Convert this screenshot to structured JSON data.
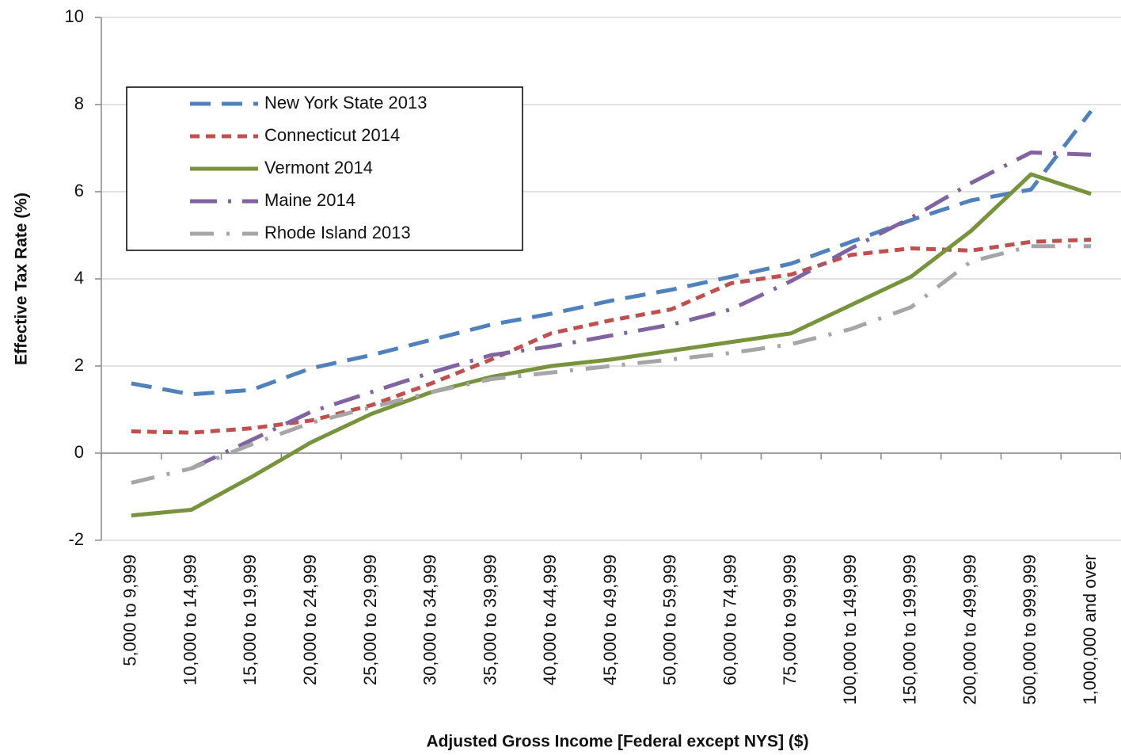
{
  "chart_data": {
    "type": "line",
    "x_label": "Adjusted Gross Income [Federal except NYS] ($)",
    "y_label": "Effective Tax Rate (%)",
    "categories": [
      "5,000 to 9,999",
      "10,000 to 14,999",
      "15,000 to 19,999",
      "20,000 to 24,999",
      "25,000 to 29,999",
      "30,000 to 34,999",
      "35,000 to 39,999",
      "40,000 to 44,999",
      "45,000 to 49,999",
      "50,000 to 59,999",
      "60,000 to 74,999",
      "75,000 to 99,999",
      "100,000 to 149,999",
      "150,000 to 199,999",
      "200,000 to 499,999",
      "500,000 to 999,999",
      "1,000,000 and over"
    ],
    "series": [
      {
        "name": "New York State 2013",
        "color": "#4f81bd",
        "values": [
          1.6,
          1.35,
          1.45,
          1.95,
          2.25,
          2.6,
          2.95,
          3.2,
          3.5,
          3.75,
          4.05,
          4.35,
          4.85,
          5.35,
          5.8,
          6.05,
          7.85
        ]
      },
      {
        "name": "Connecticut 2014",
        "color": "#c0504d",
        "values": [
          0.5,
          0.47,
          0.57,
          0.75,
          1.1,
          1.6,
          2.15,
          2.75,
          3.05,
          3.3,
          3.9,
          4.1,
          4.55,
          4.7,
          4.65,
          4.85,
          4.9
        ]
      },
      {
        "name": "Vermont 2014",
        "color": "#77933c",
        "values": [
          -1.43,
          -1.3,
          -0.55,
          0.25,
          0.9,
          1.4,
          1.75,
          2.0,
          2.15,
          2.35,
          2.55,
          2.75,
          3.4,
          4.05,
          5.1,
          6.4,
          5.95
        ]
      },
      {
        "name": "Maine 2014",
        "color": "#8064a2",
        "values": [
          null,
          -0.35,
          0.3,
          0.95,
          1.4,
          1.85,
          2.25,
          2.45,
          2.7,
          2.95,
          3.3,
          3.95,
          4.7,
          5.4,
          6.2,
          6.9,
          6.85
        ]
      },
      {
        "name": "Rhode Island 2013",
        "color": "#a6a6a6",
        "values": [
          -0.68,
          -0.35,
          0.2,
          0.7,
          1.05,
          1.4,
          1.7,
          1.85,
          2.0,
          2.15,
          2.3,
          2.5,
          2.85,
          3.35,
          4.4,
          4.75,
          4.75
        ]
      }
    ],
    "ylim": [
      -2,
      10
    ],
    "yticks": [
      -2,
      0,
      2,
      4,
      6,
      8,
      10
    ],
    "grid": true
  }
}
